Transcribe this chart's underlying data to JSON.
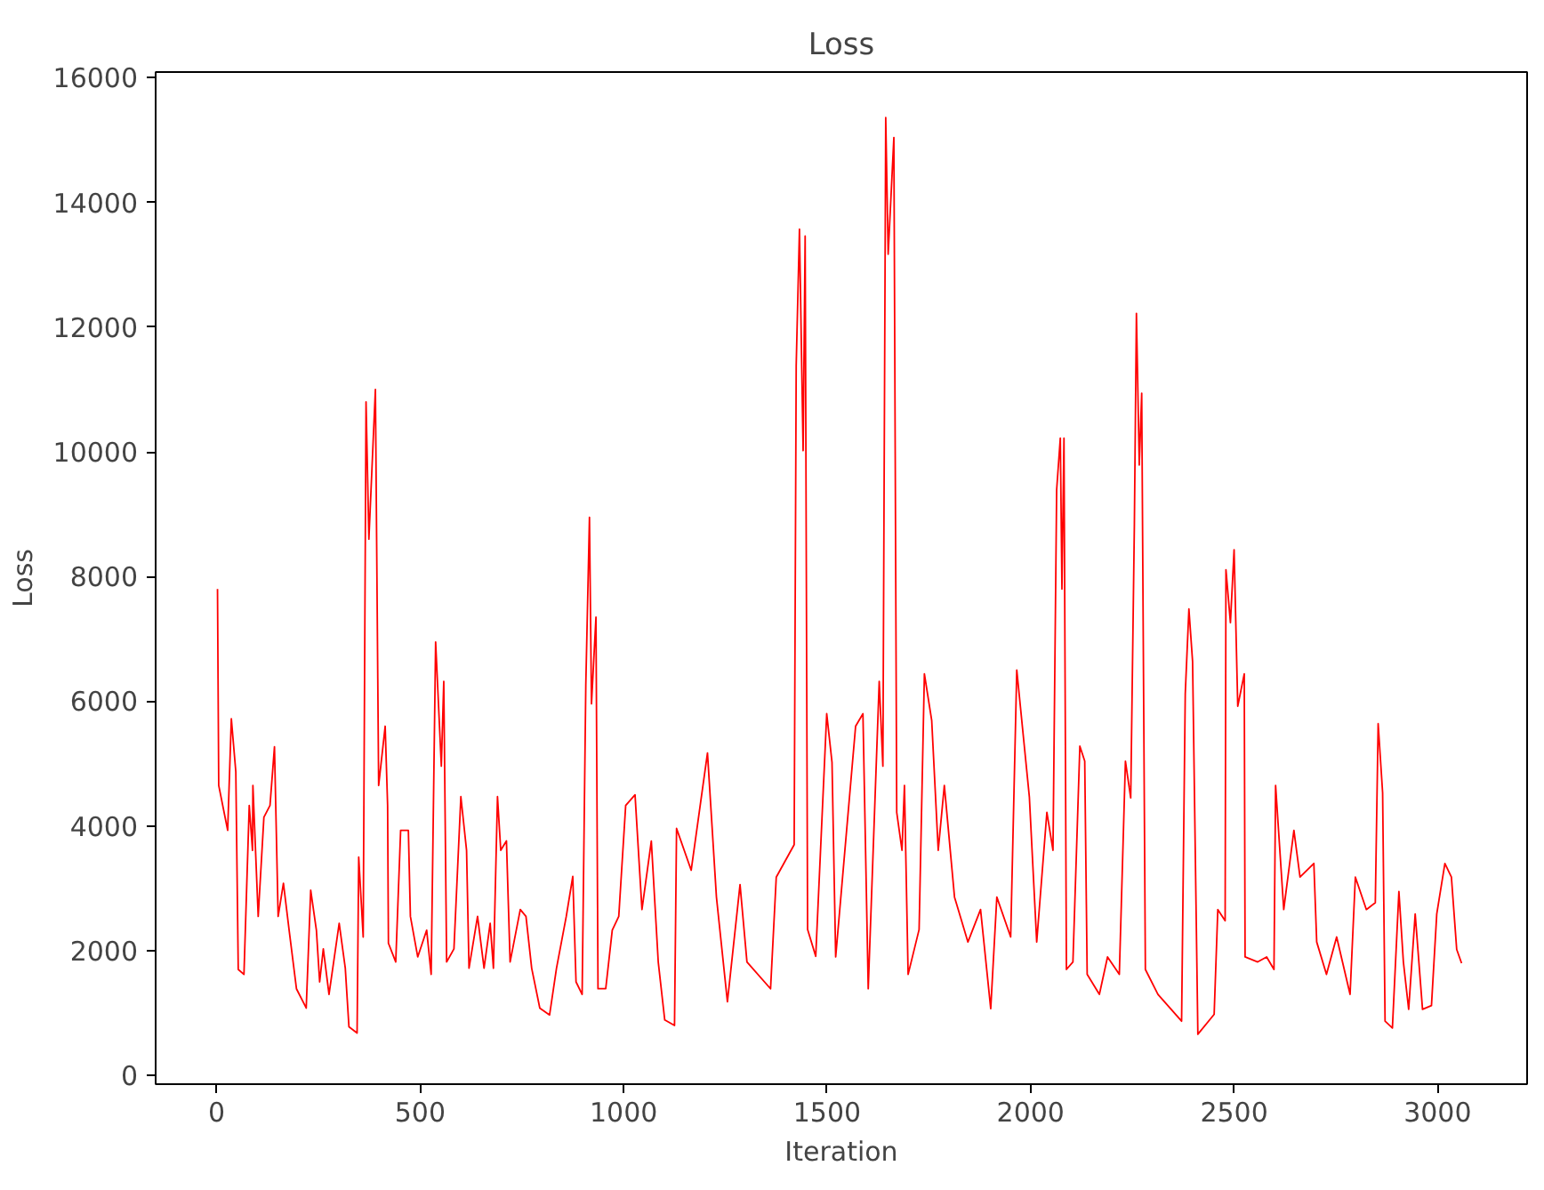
{
  "chart_data": {
    "type": "line",
    "title": "Loss",
    "xlabel": "Iteration",
    "ylabel": "Loss",
    "xlim": [
      -150,
      3220
    ],
    "ylim": [
      -140,
      16090
    ],
    "xticks": [
      0,
      500,
      1000,
      1500,
      2000,
      2500,
      3000
    ],
    "yticks": [
      0,
      2000,
      4000,
      6000,
      8000,
      10000,
      12000,
      14000,
      16000
    ],
    "grid": false,
    "marker": "none",
    "line_style": "solid",
    "x": [
      2,
      5,
      27,
      36,
      47,
      53,
      67,
      80,
      88,
      89,
      102,
      116,
      131,
      142,
      151,
      164,
      178,
      196,
      220,
      231,
      245,
      253,
      262,
      276,
      301,
      316,
      325,
      345,
      349,
      360,
      367,
      374,
      390,
      398,
      414,
      420,
      422,
      440,
      452,
      471,
      476,
      494,
      516,
      527,
      538,
      552,
      558,
      565,
      583,
      600,
      614,
      620,
      641,
      657,
      672,
      680,
      690,
      698,
      712,
      721,
      746,
      760,
      774,
      794,
      818,
      835,
      859,
      875,
      883,
      898,
      907,
      916,
      921,
      932,
      937,
      956,
      972,
      988,
      1005,
      1028,
      1045,
      1068,
      1085,
      1101,
      1125,
      1130,
      1166,
      1206,
      1228,
      1255,
      1286,
      1303,
      1361,
      1375,
      1419,
      1424,
      1432,
      1441,
      1446,
      1452,
      1472,
      1499,
      1512,
      1521,
      1570,
      1588,
      1601,
      1628,
      1637,
      1644,
      1650,
      1664,
      1671,
      1684,
      1690,
      1699,
      1726,
      1739,
      1757,
      1773,
      1788,
      1813,
      1846,
      1877,
      1902,
      1917,
      1951,
      1966,
      1997,
      2015,
      2040,
      2055,
      2064,
      2073,
      2077,
      2082,
      2088,
      2104,
      2121,
      2133,
      2139,
      2169,
      2189,
      2218,
      2233,
      2246,
      2255,
      2260,
      2267,
      2273,
      2282,
      2313,
      2371,
      2380,
      2389,
      2398,
      2411,
      2451,
      2460,
      2478,
      2480,
      2491,
      2500,
      2509,
      2525,
      2527,
      2558,
      2580,
      2598,
      2602,
      2622,
      2647,
      2662,
      2696,
      2703,
      2727,
      2752,
      2785,
      2798,
      2825,
      2847,
      2854,
      2865,
      2871,
      2889,
      2905,
      2916,
      2929,
      2945,
      2963,
      2985,
      2998,
      3018,
      3034,
      3047,
      3059
    ],
    "series": [
      {
        "color": "#ff0000",
        "values": [
          7800,
          4650,
          3930,
          5720,
          4870,
          1700,
          1620,
          4330,
          3610,
          4650,
          2550,
          4140,
          4330,
          5270,
          2550,
          3080,
          2330,
          1390,
          1080,
          2970,
          2330,
          1500,
          2030,
          1300,
          2440,
          1720,
          780,
          680,
          3500,
          2220,
          10800,
          8600,
          11000,
          4650,
          5600,
          4330,
          2120,
          1820,
          3930,
          3930,
          2550,
          1900,
          2330,
          1620,
          6950,
          4960,
          6320,
          1820,
          2030,
          4470,
          3610,
          1720,
          2550,
          1720,
          2440,
          1720,
          4470,
          3610,
          3760,
          1820,
          2660,
          2550,
          1720,
          1080,
          970,
          1720,
          2550,
          3190,
          1500,
          1300,
          6260,
          8950,
          5960,
          7350,
          1390,
          1390,
          2330,
          2550,
          4330,
          4500,
          2660,
          3760,
          1820,
          890,
          800,
          3960,
          3290,
          5170,
          2860,
          1180,
          3060,
          1820,
          1390,
          3180,
          3700,
          11380,
          13570,
          10020,
          13460,
          2340,
          1910,
          5800,
          5020,
          1900,
          5600,
          5800,
          1390,
          6320,
          4960,
          15360,
          13170,
          15040,
          4220,
          3610,
          4650,
          1620,
          2340,
          6440,
          5690,
          3610,
          4650,
          2860,
          2140,
          2660,
          1070,
          2860,
          2220,
          6500,
          4460,
          2140,
          4220,
          3610,
          9390,
          10220,
          7800,
          10220,
          1700,
          1820,
          5280,
          5040,
          1620,
          1300,
          1900,
          1620,
          5040,
          4450,
          8840,
          12220,
          9790,
          10940,
          1700,
          1300,
          870,
          6120,
          7480,
          6640,
          660,
          980,
          2660,
          2480,
          8110,
          7260,
          8430,
          5920,
          6440,
          1900,
          1820,
          1900,
          1700,
          4650,
          2660,
          3930,
          3180,
          3400,
          2140,
          1620,
          2220,
          1300,
          3180,
          2660,
          2770,
          5640,
          4530,
          870,
          760,
          2950,
          1820,
          1060,
          2590,
          1060,
          1120,
          2590,
          3400,
          3180,
          2020,
          1800
        ]
      }
    ]
  }
}
